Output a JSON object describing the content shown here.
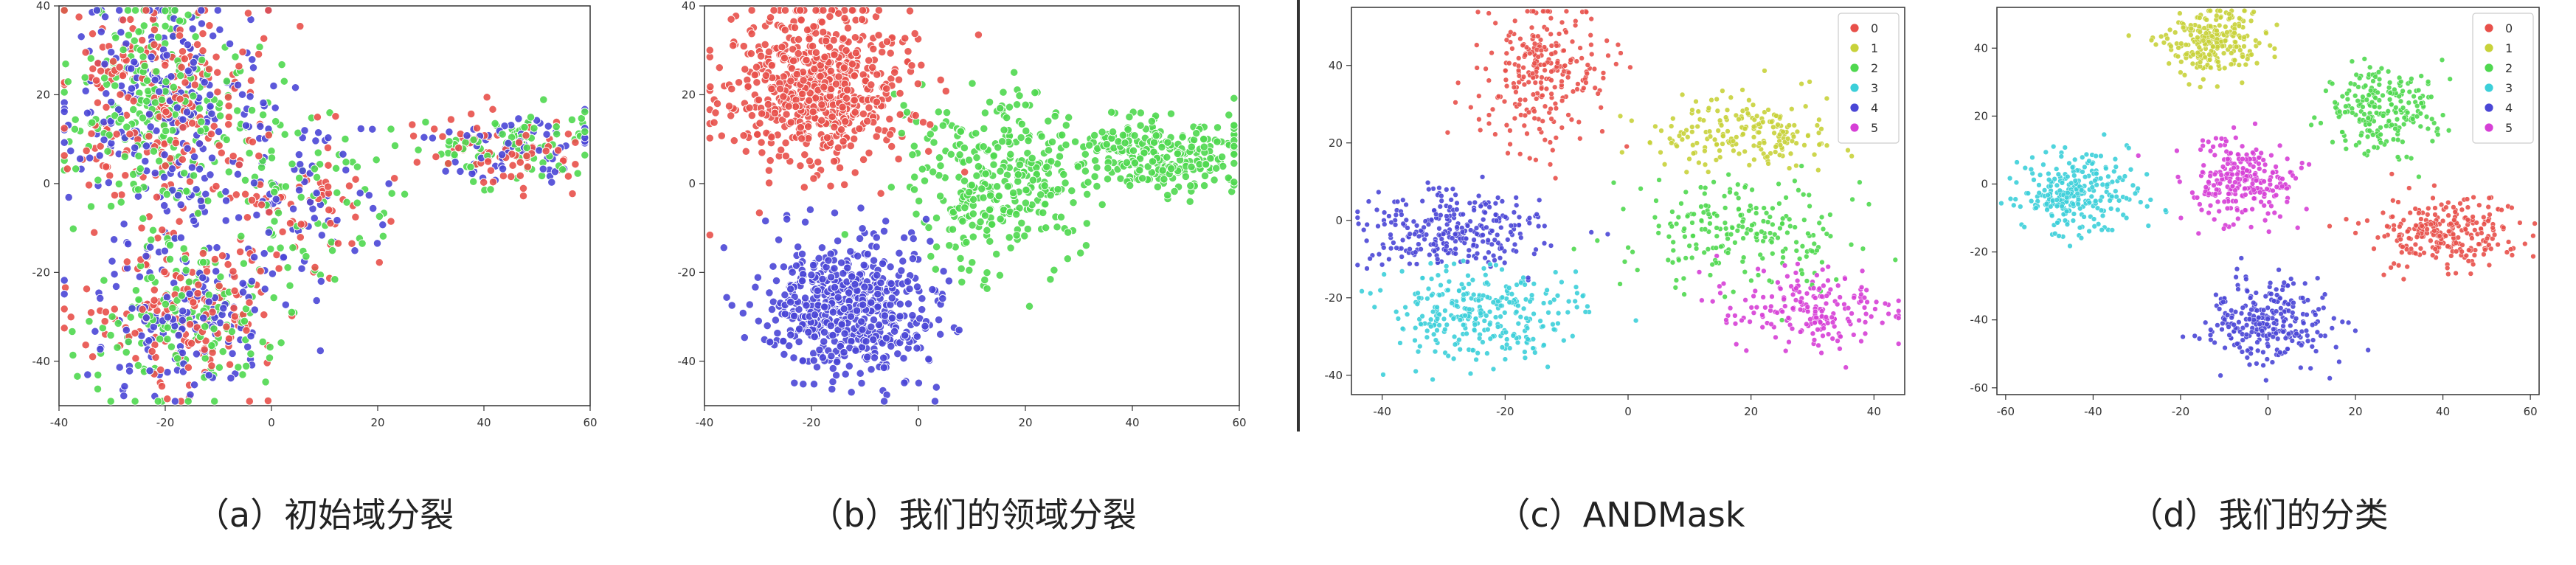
{
  "figure": {
    "captions": [
      "（a）初始域分裂",
      "（b）我们的领域分裂",
      "（c）ANDMask",
      "（d）我们的分类"
    ]
  },
  "colors": {
    "red": "#e8504a",
    "olive": "#c8d23a",
    "green": "#4fd84f",
    "cyan": "#3ccfd9",
    "blue": "#4a46d6",
    "magenta": "#d63fd6",
    "axis": "#333333"
  },
  "chart_data": [
    {
      "type": "scatter",
      "title": "",
      "xlabel": "",
      "ylabel": "",
      "xlim": [
        -40,
        60
      ],
      "ylim": [
        -50,
        40
      ],
      "xticks": [
        -40,
        -20,
        0,
        20,
        40,
        60
      ],
      "yticks": [
        40,
        20,
        0,
        -20,
        -40
      ],
      "grid": false,
      "legend": null,
      "series": [
        {
          "color_key": "red",
          "clusters": [
            {
              "cx": -20,
              "cy": 18,
              "sx": 9,
              "sy": 13,
              "n": 230
            },
            {
              "cx": -16,
              "cy": -30,
              "sx": 9,
              "sy": 9,
              "n": 160
            },
            {
              "cx": 5,
              "cy": -5,
              "sx": 8,
              "sy": 9,
              "n": 70
            },
            {
              "cx": 44,
              "cy": 8,
              "sx": 8,
              "sy": 4,
              "n": 70
            }
          ]
        },
        {
          "color_key": "green",
          "clusters": [
            {
              "cx": -20,
              "cy": 18,
              "sx": 9,
              "sy": 13,
              "n": 230
            },
            {
              "cx": -16,
              "cy": -30,
              "sx": 9,
              "sy": 9,
              "n": 150
            },
            {
              "cx": 5,
              "cy": -5,
              "sx": 8,
              "sy": 9,
              "n": 70
            },
            {
              "cx": 44,
              "cy": 8,
              "sx": 8,
              "sy": 4,
              "n": 80
            }
          ]
        },
        {
          "color_key": "blue",
          "clusters": [
            {
              "cx": -20,
              "cy": 18,
              "sx": 9,
              "sy": 13,
              "n": 230
            },
            {
              "cx": -16,
              "cy": -30,
              "sx": 9,
              "sy": 9,
              "n": 160
            },
            {
              "cx": 5,
              "cy": -5,
              "sx": 8,
              "sy": 9,
              "n": 70
            },
            {
              "cx": 44,
              "cy": 8,
              "sx": 8,
              "sy": 4,
              "n": 70
            }
          ]
        }
      ]
    },
    {
      "type": "scatter",
      "title": "",
      "xlabel": "",
      "ylabel": "",
      "xlim": [
        -40,
        60
      ],
      "ylim": [
        -50,
        40
      ],
      "xticks": [
        -40,
        -20,
        0,
        20,
        40,
        60
      ],
      "yticks": [
        40,
        20,
        0,
        -20,
        -40
      ],
      "grid": false,
      "legend": null,
      "series": [
        {
          "color_key": "red",
          "clusters": [
            {
              "cx": -18,
              "cy": 22,
              "sx": 9,
              "sy": 9,
              "n": 620
            }
          ]
        },
        {
          "color_key": "green",
          "clusters": [
            {
              "cx": 15,
              "cy": 2,
              "sx": 9,
              "sy": 10,
              "n": 330
            },
            {
              "cx": 45,
              "cy": 7,
              "sx": 8,
              "sy": 4,
              "n": 260
            }
          ]
        },
        {
          "color_key": "blue",
          "clusters": [
            {
              "cx": -13,
              "cy": -28,
              "sx": 8,
              "sy": 8,
              "n": 560
            }
          ]
        }
      ]
    },
    {
      "type": "scatter",
      "title": "",
      "xlabel": "",
      "ylabel": "",
      "xlim": [
        -45,
        45
      ],
      "ylim": [
        -45,
        55
      ],
      "xticks": [
        -40,
        -20,
        0,
        20,
        40
      ],
      "yticks": [
        40,
        20,
        0,
        -20,
        -40
      ],
      "grid": false,
      "legend": {
        "placement": "top-right",
        "labels": [
          "0",
          "1",
          "2",
          "3",
          "4",
          "5"
        ]
      },
      "series": [
        {
          "name": "0",
          "color_key": "red",
          "clusters": [
            {
              "cx": -14,
              "cy": 37,
              "sx": 5,
              "sy": 9,
              "n": 260
            }
          ]
        },
        {
          "name": "1",
          "color_key": "olive",
          "clusters": [
            {
              "cx": 18,
              "cy": 22,
              "sx": 8,
              "sy": 5,
              "n": 200
            }
          ]
        },
        {
          "name": "2",
          "color_key": "green",
          "clusters": [
            {
              "cx": 18,
              "cy": -3,
              "sx": 9,
              "sy": 7,
              "n": 220
            }
          ]
        },
        {
          "name": "3",
          "color_key": "cyan",
          "clusters": [
            {
              "cx": -24,
              "cy": -24,
              "sx": 8,
              "sy": 6,
              "n": 300
            }
          ]
        },
        {
          "name": "4",
          "color_key": "blue",
          "clusters": [
            {
              "cx": -28,
              "cy": -3,
              "sx": 8,
              "sy": 5,
              "n": 280
            }
          ]
        },
        {
          "name": "5",
          "color_key": "magenta",
          "clusters": [
            {
              "cx": 30,
              "cy": -23,
              "sx": 7,
              "sy": 5,
              "n": 200
            }
          ]
        }
      ]
    },
    {
      "type": "scatter",
      "title": "",
      "xlabel": "",
      "ylabel": "",
      "xlim": [
        -62,
        62
      ],
      "ylim": [
        -62,
        52
      ],
      "xticks": [
        -60,
        -40,
        -20,
        0,
        20,
        40,
        60
      ],
      "yticks": [
        40,
        20,
        0,
        -20,
        -40,
        -60
      ],
      "grid": false,
      "legend": {
        "placement": "top-right",
        "labels": [
          "0",
          "1",
          "2",
          "3",
          "4",
          "5"
        ]
      },
      "series": [
        {
          "name": "0",
          "color_key": "red",
          "clusters": [
            {
              "cx": 40,
              "cy": -14,
              "sx": 8,
              "sy": 5,
              "n": 260
            }
          ]
        },
        {
          "name": "1",
          "color_key": "olive",
          "clusters": [
            {
              "cx": -12,
              "cy": 42,
              "sx": 6,
              "sy": 5,
              "n": 240
            }
          ]
        },
        {
          "name": "2",
          "color_key": "green",
          "clusters": [
            {
              "cx": 26,
              "cy": 22,
              "sx": 6,
              "sy": 6,
              "n": 230
            }
          ]
        },
        {
          "name": "3",
          "color_key": "cyan",
          "clusters": [
            {
              "cx": -44,
              "cy": -3,
              "sx": 7,
              "sy": 6,
              "n": 270
            }
          ]
        },
        {
          "name": "4",
          "color_key": "blue",
          "clusters": [
            {
              "cx": 0,
              "cy": -41,
              "sx": 7,
              "sy": 6,
              "n": 280
            }
          ]
        },
        {
          "name": "5",
          "color_key": "magenta",
          "clusters": [
            {
              "cx": -6,
              "cy": 1,
              "sx": 6,
              "sy": 6,
              "n": 250
            }
          ]
        }
      ]
    }
  ]
}
